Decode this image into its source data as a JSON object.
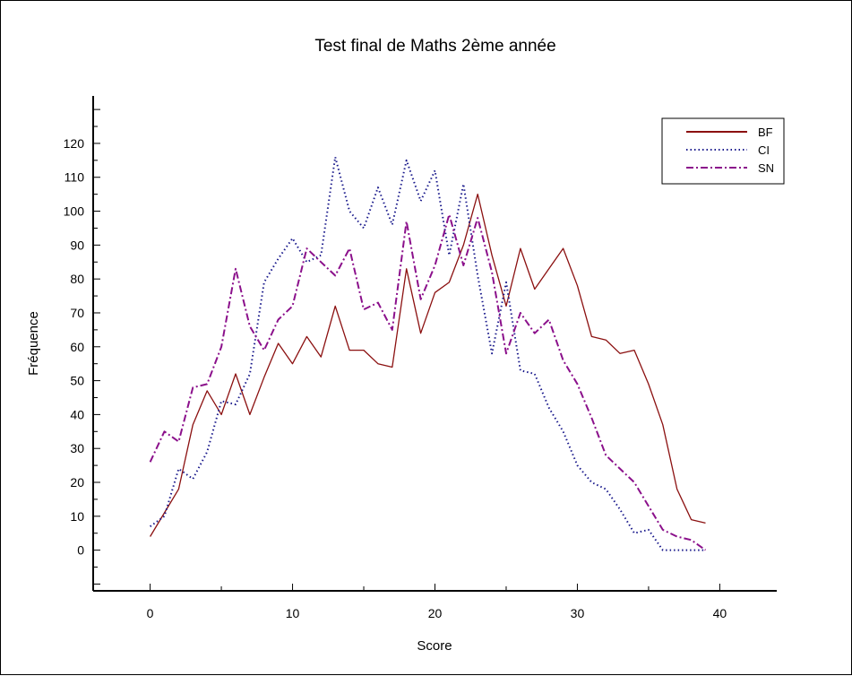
{
  "chart_data": {
    "type": "line",
    "title": "Test final de Maths 2ème année",
    "xlabel": "Score",
    "ylabel": "Fréquence",
    "xlim": [
      -4,
      44
    ],
    "ylim": [
      -12,
      134
    ],
    "xticks": [
      0,
      10,
      20,
      30,
      40
    ],
    "yticks": [
      0,
      10,
      20,
      30,
      40,
      50,
      60,
      70,
      80,
      90,
      100,
      110,
      120
    ],
    "grid": false,
    "legend_position": "top-right",
    "x": [
      0,
      1,
      2,
      3,
      4,
      5,
      6,
      7,
      8,
      9,
      10,
      11,
      12,
      13,
      14,
      15,
      16,
      17,
      18,
      19,
      20,
      21,
      22,
      23,
      24,
      25,
      26,
      27,
      28,
      29,
      30,
      31,
      32,
      33,
      34,
      35,
      36,
      37,
      38,
      39
    ],
    "series": [
      {
        "name": "BF",
        "color": "#8b1010",
        "dash": "solid",
        "values": [
          4,
          11,
          18,
          37,
          47,
          40,
          52,
          40,
          51,
          61,
          55,
          63,
          57,
          72,
          59,
          59,
          55,
          54,
          83,
          64,
          76,
          79,
          90,
          105,
          87,
          72,
          89,
          77,
          83,
          89,
          78,
          63,
          62,
          58,
          59,
          49,
          37,
          18,
          9,
          8
        ]
      },
      {
        "name": "CI",
        "color": "#1a1a8c",
        "dash": "dotted",
        "values": [
          7,
          10,
          24,
          21,
          29,
          44,
          43,
          52,
          79,
          86,
          92,
          85,
          87,
          116,
          100,
          95,
          107,
          96,
          115,
          103,
          112,
          87,
          108,
          81,
          58,
          79,
          53,
          52,
          42,
          35,
          25,
          20,
          18,
          12,
          5,
          6,
          0,
          0,
          0,
          0
        ]
      },
      {
        "name": "SN",
        "color": "#8b108b",
        "dash": "dashdot",
        "values": [
          26,
          35,
          32,
          48,
          49,
          60,
          83,
          66,
          59,
          68,
          72,
          89,
          85,
          81,
          89,
          71,
          73,
          65,
          97,
          74,
          84,
          99,
          84,
          98,
          82,
          58,
          70,
          64,
          68,
          56,
          49,
          39,
          28,
          24,
          20,
          13,
          6,
          4,
          3,
          0
        ]
      }
    ]
  }
}
